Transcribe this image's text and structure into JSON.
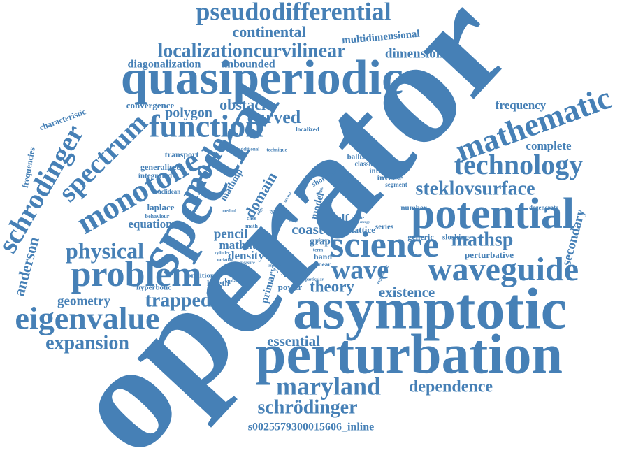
{
  "words": [
    "operator",
    "spectral",
    "asymptotic",
    "perturbation",
    "quasiperiodic",
    "potential",
    "science",
    "problem",
    "eigenvalue",
    "function",
    "mathematic",
    "technology",
    "waveguide",
    "wave",
    "monotone",
    "spectrum",
    "schrodinger",
    "pseudodifferential",
    "continental",
    "multidimensional",
    "localizationcurvilinear",
    "dimensional",
    "diagonalization",
    "unbounded",
    "mode",
    "steklovsurface",
    "curved",
    "obstacle",
    "polygon",
    "convergence",
    "frequency",
    "complete",
    "characteristic",
    "frequencies",
    "anderson",
    "physical",
    "equation",
    "laplace",
    "pencil",
    "coast",
    "shelf",
    "mathsp",
    "secondary",
    "perturbative",
    "generic",
    "sloshing",
    "theory",
    "existence",
    "trapped",
    "geometry",
    "hyperbolic",
    "expansion",
    "essential",
    "maryland",
    "dependence",
    "schrödinger",
    "s0025579300015606_inline",
    "transport",
    "generalised",
    "integrated",
    "euclidean",
    "behaviour",
    "condition",
    "length",
    "density",
    "mathnt",
    "mathmp",
    "domain",
    "primary",
    "power",
    "space",
    "model",
    "graph",
    "band",
    "linear",
    "ballistic",
    "classical",
    "integer",
    "inverse",
    "segment",
    "lattice",
    "series",
    "number",
    "degenerate",
    "laplacian",
    "localized",
    "technique",
    "additional",
    "guide",
    "short bloch",
    "case",
    "math",
    "type",
    "class",
    "term",
    "piece",
    "cylinder",
    "variation",
    "smooth",
    "measure",
    "analytic",
    "particular",
    "exponential",
    "circle",
    "infinite",
    "energy",
    "corner",
    "angle",
    "method",
    "edge"
  ]
}
